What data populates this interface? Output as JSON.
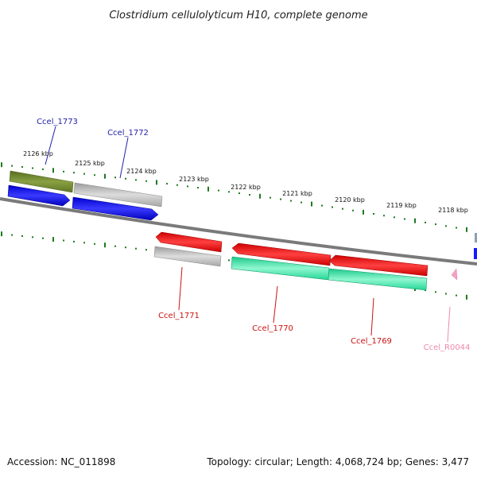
{
  "title": "Clostridium cellulolyticum H10, complete genome",
  "footer": {
    "accession": "Accession: NC_011898",
    "summary": "Topology: circular; Length: 4,068,724 bp; Genes: 3,477"
  },
  "colors": {
    "backbone": "#7a7a7a",
    "tick": "#1e7a1e",
    "blue_label": "#2222aa",
    "red_label": "#cc1111",
    "pink_label": "#ee88aa"
  },
  "kbp_labels": [
    "2126 kbp",
    "2125 kbp",
    "2124 kbp",
    "2123 kbp",
    "2122 kbp",
    "2121 kbp",
    "2120 kbp",
    "2119 kbp",
    "2118 kbp"
  ],
  "genes": [
    {
      "name": "Ccel_1773",
      "color": "blue"
    },
    {
      "name": "Ccel_1772",
      "color": "blue"
    },
    {
      "name": "Ccel_1771",
      "color": "red"
    },
    {
      "name": "Ccel_1770",
      "color": "red"
    },
    {
      "name": "Ccel_1769",
      "color": "red"
    },
    {
      "name": "Ccel_R0044",
      "color": "pink"
    }
  ]
}
